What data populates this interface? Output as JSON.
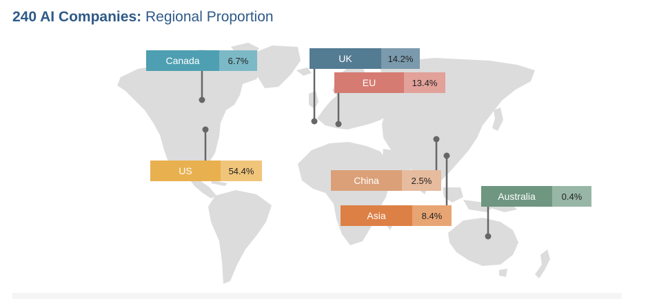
{
  "header": {
    "title_bold": "240 AI Companies:",
    "title_rest": "Regional Proportion"
  },
  "chart_data": {
    "type": "map",
    "title": "240 AI Companies: Regional Proportion",
    "regions": [
      {
        "name": "Canada",
        "value": 6.7,
        "label": "6.7%",
        "color": "#4e9fb1",
        "value_color": "#7cb9c7"
      },
      {
        "name": "UK",
        "value": 14.2,
        "label": "14.2%",
        "color": "#537b92",
        "value_color": "#7b9aad"
      },
      {
        "name": "EU",
        "value": 13.4,
        "label": "13.4%",
        "color": "#d57b72",
        "value_color": "#e2a199"
      },
      {
        "name": "US",
        "value": 54.4,
        "label": "54.4%",
        "color": "#e9b04f",
        "value_color": "#f0c57a"
      },
      {
        "name": "China",
        "value": 2.5,
        "label": "2.5%",
        "color": "#dba078",
        "value_color": "#e7bb9e"
      },
      {
        "name": "Asia",
        "value": 8.4,
        "label": "8.4%",
        "color": "#dd8045",
        "value_color": "#e8a574"
      },
      {
        "name": "Australia",
        "value": 0.4,
        "label": "0.4%",
        "color": "#6e9681",
        "value_color": "#98b6a6"
      }
    ]
  }
}
